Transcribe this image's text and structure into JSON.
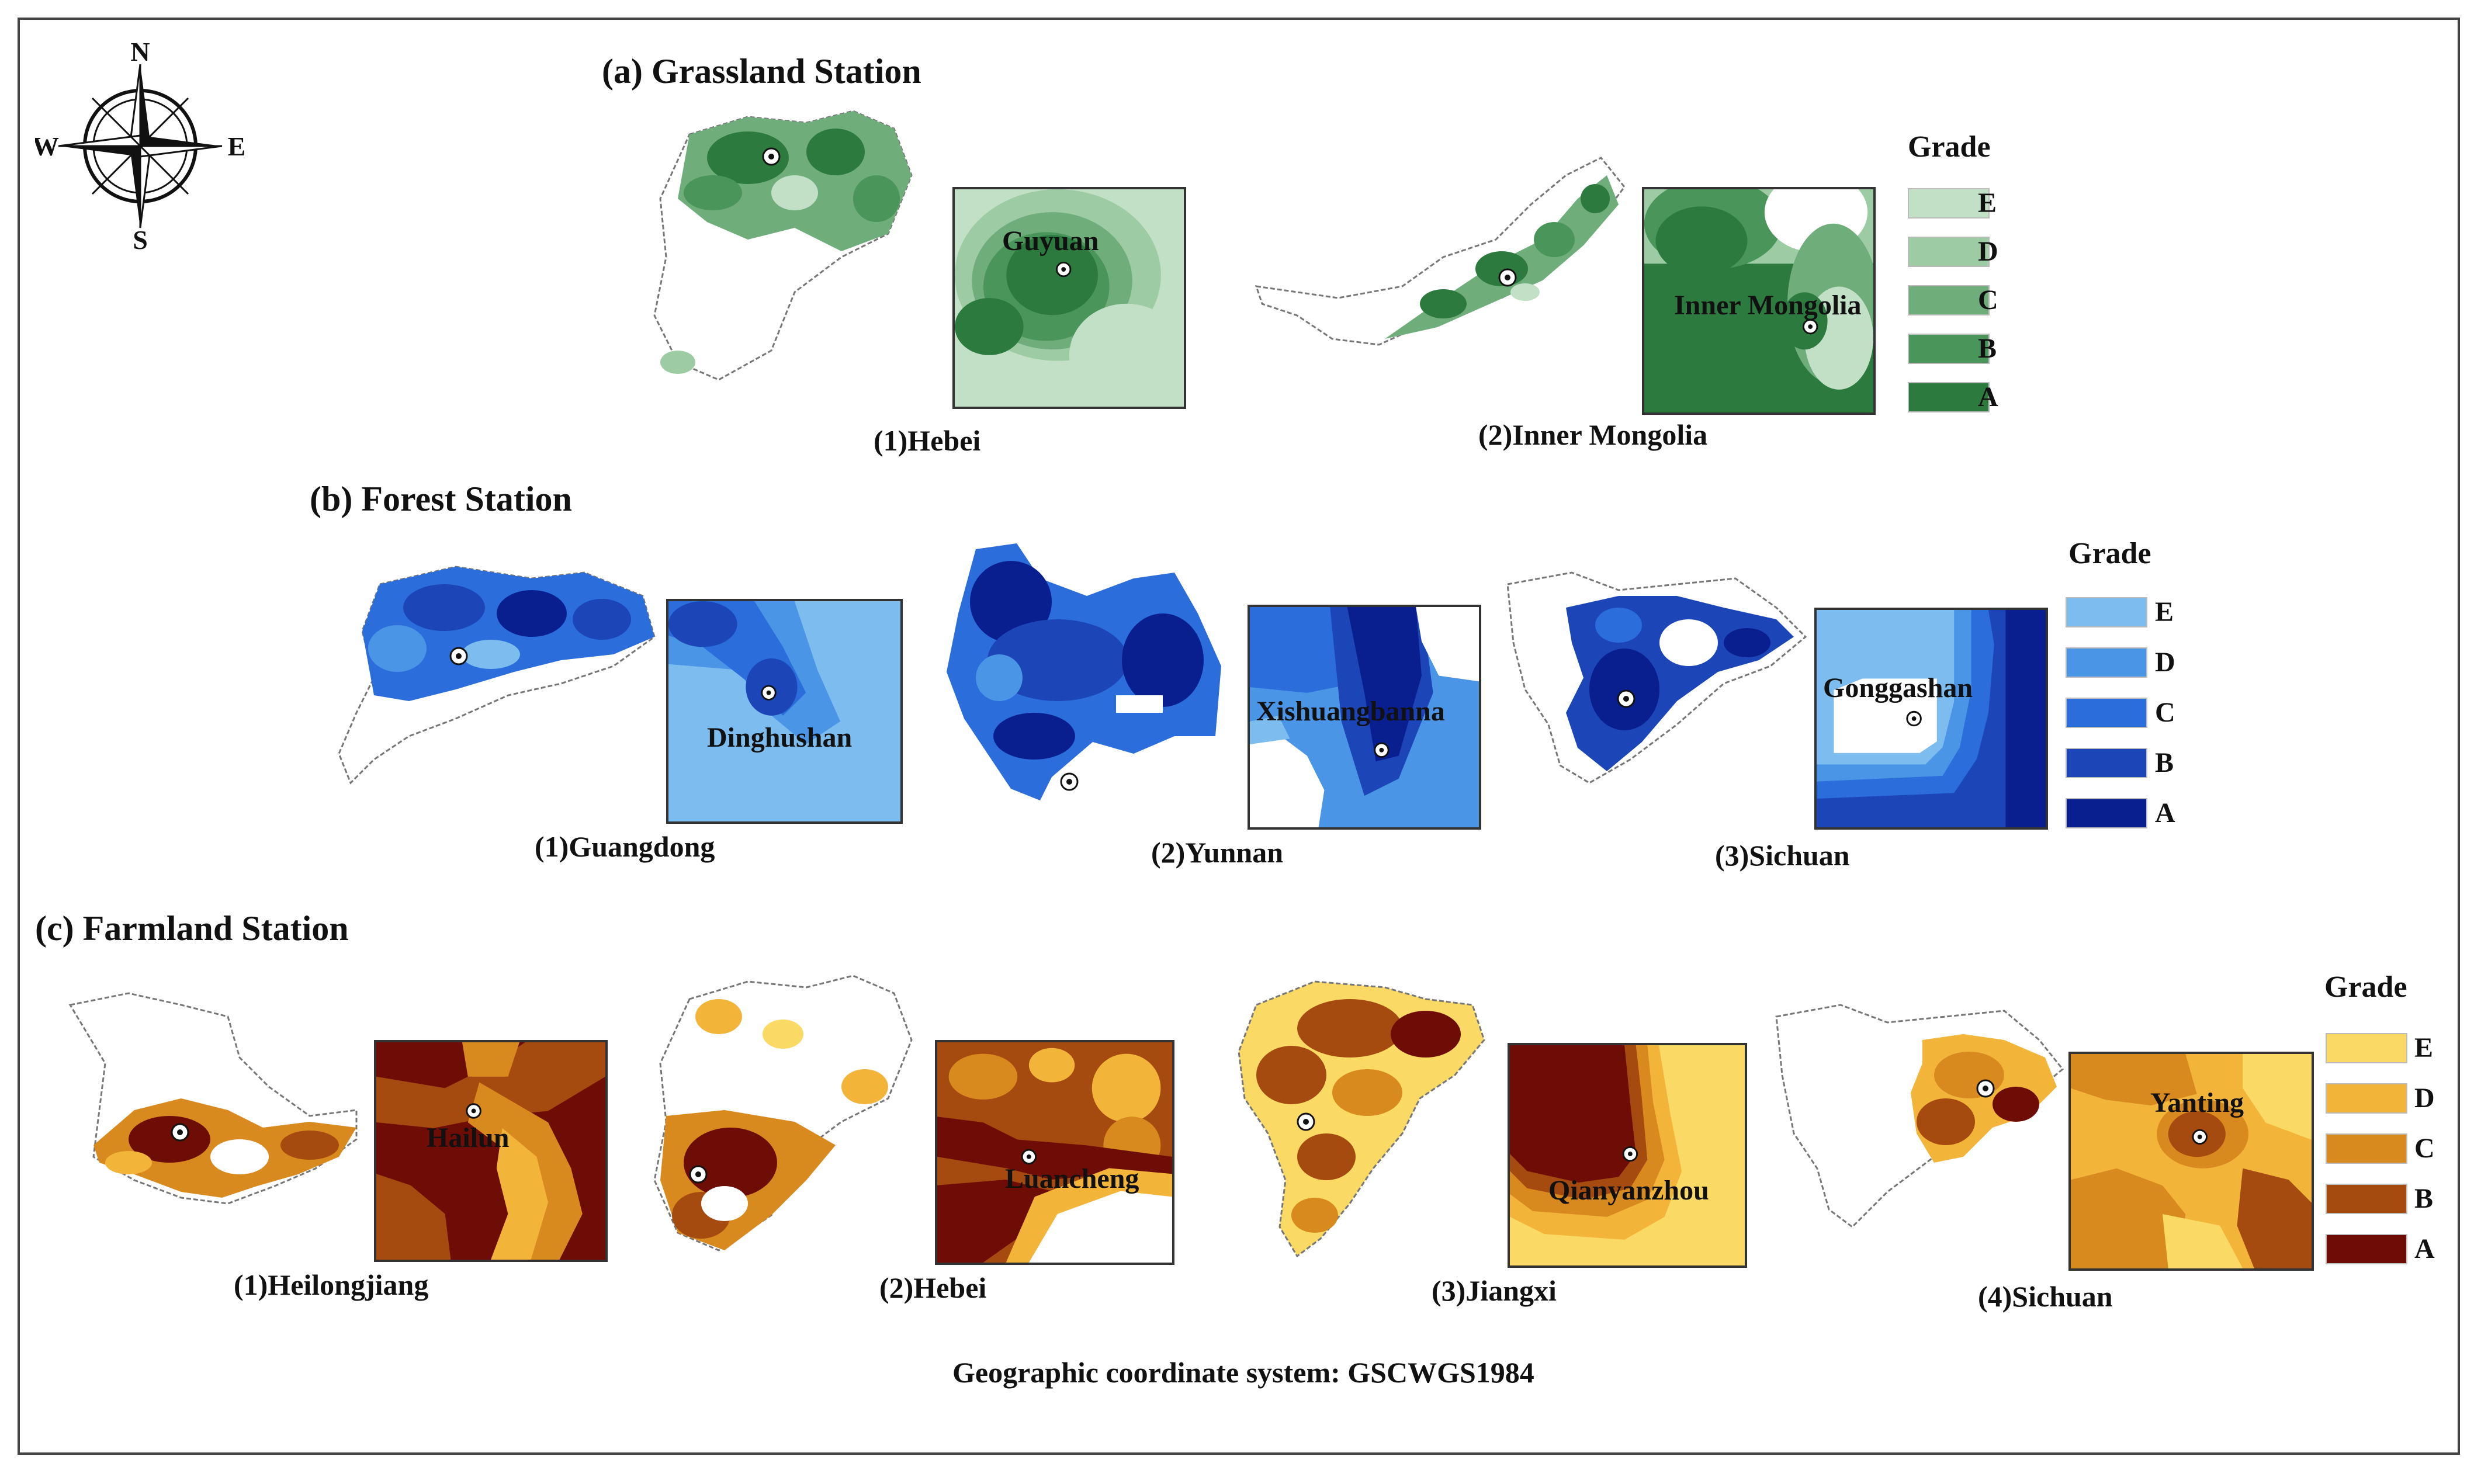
{
  "compass": {
    "n": "N",
    "s": "S",
    "e": "E",
    "w": "W"
  },
  "sections": {
    "grassland": {
      "title": "(a) Grassland Station",
      "maps": [
        {
          "caption": "(1)Hebei",
          "station": "Guyuan"
        },
        {
          "caption": "(2)Inner Mongolia",
          "station": "Inner Mongolia"
        }
      ],
      "legend": {
        "title": "Grade",
        "grades": [
          "E",
          "D",
          "C",
          "B",
          "A"
        ],
        "colors": [
          "#c2e0c6",
          "#9dcba3",
          "#6fad7b",
          "#4a9559",
          "#2d7a3f"
        ]
      }
    },
    "forest": {
      "title": "(b) Forest Station",
      "maps": [
        {
          "caption": "(1)Guangdong",
          "station": "Dinghushan"
        },
        {
          "caption": "(2)Yunnan",
          "station": "Xishuangbanna"
        },
        {
          "caption": "(3)Sichuan",
          "station": "Gonggashan"
        }
      ],
      "legend": {
        "title": "Grade",
        "grades": [
          "E",
          "D",
          "C",
          "B",
          "A"
        ],
        "colors": [
          "#7cbcee",
          "#4b95e6",
          "#2a6ddb",
          "#1c45b8",
          "#0a1f8f"
        ]
      }
    },
    "farmland": {
      "title": "(c) Farmland Station",
      "maps": [
        {
          "caption": "(1)Heilongjiang",
          "station": "Hailun"
        },
        {
          "caption": "(2)Hebei",
          "station": "Luancheng"
        },
        {
          "caption": "(3)Jiangxi",
          "station": "Qianyanzhou"
        },
        {
          "caption": "(4)Sichuan",
          "station": "Yanting"
        }
      ],
      "legend": {
        "title": "Grade",
        "grades": [
          "E",
          "D",
          "C",
          "B",
          "A"
        ],
        "colors": [
          "#fbd965",
          "#f2b53a",
          "#d98a1f",
          "#a54b10",
          "#6e0d05"
        ]
      }
    }
  },
  "footer": "Geographic coordinate system: GSCWGS1984"
}
